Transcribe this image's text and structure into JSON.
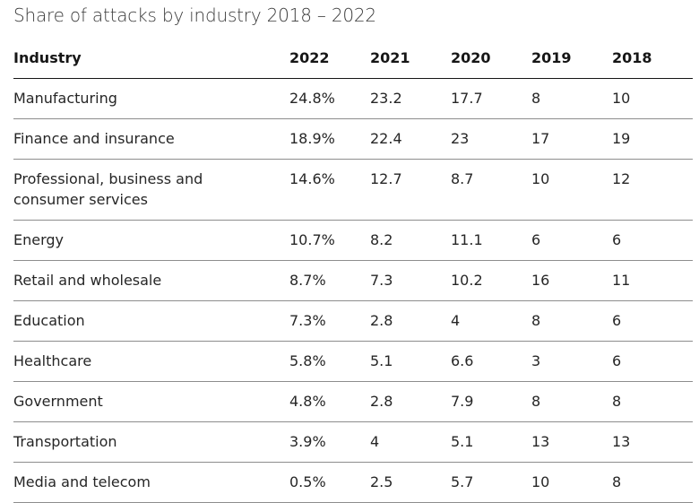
{
  "chart_data": {
    "type": "table",
    "title": "Share of attacks by industry 2018 – 2022",
    "columns": [
      "Industry",
      "2022",
      "2021",
      "2020",
      "2019",
      "2018"
    ],
    "rows": [
      [
        "Manufacturing",
        "24.8%",
        "23.2",
        "17.7",
        "8",
        "10"
      ],
      [
        "Finance and insurance",
        "18.9%",
        "22.4",
        "23",
        "17",
        "19"
      ],
      [
        "Professional, business and consumer services",
        "14.6%",
        "12.7",
        "8.7",
        "10",
        "12"
      ],
      [
        "Energy",
        "10.7%",
        "8.2",
        "11.1",
        "6",
        "6"
      ],
      [
        "Retail and wholesale",
        "8.7%",
        "7.3",
        "10.2",
        "16",
        "11"
      ],
      [
        "Education",
        "7.3%",
        "2.8",
        "4",
        "8",
        "6"
      ],
      [
        "Healthcare",
        "5.8%",
        "5.1",
        "6.6",
        "3",
        "6"
      ],
      [
        "Government",
        "4.8%",
        "2.8",
        "7.9",
        "8",
        "8"
      ],
      [
        "Transportation",
        "3.9%",
        "4",
        "5.1",
        "13",
        "13"
      ],
      [
        "Media and telecom",
        "0.5%",
        "2.5",
        "5.7",
        "10",
        "8"
      ]
    ]
  }
}
